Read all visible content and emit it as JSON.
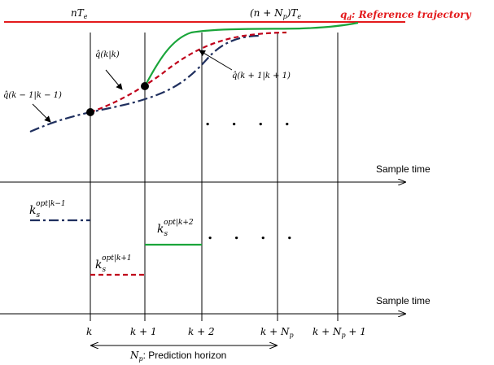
{
  "colors": {
    "reference": "#e31a1c",
    "past_prediction": "#1f2f5e",
    "current_prediction": "#c0001a",
    "next_prediction": "#1aa53a",
    "axis": "#000000"
  },
  "top_labels": {
    "n_te": "nT",
    "n_te_sub": "e",
    "n_np_te": "(n + N",
    "n_np_te_sub_p": "p",
    "n_np_te_tail": ")T",
    "n_np_te_sub_e": "e"
  },
  "reference": {
    "symbol": "q",
    "symbol_sub": "d",
    "label": ": Reference trajectory"
  },
  "annotations": {
    "q_k_k": "q̂(k|k)",
    "q_k1_k1": "q̂(k − 1|k − 1)",
    "q_k1p_k1p": "q̂(k + 1|k + 1)",
    "dots_top": ". . . .",
    "dots_bottom": ". . . ."
  },
  "axes": {
    "upper_label": "Sample time",
    "lower_label": "Sample time"
  },
  "gains": {
    "k_km1": {
      "base": "k",
      "sub": "s",
      "sup": "opt|k−1"
    },
    "k_k1": {
      "base": "k",
      "sub": "s",
      "sup": "opt|k+1"
    },
    "k_k2": {
      "base": "k",
      "sub": "s",
      "sup": "opt|k+2"
    }
  },
  "ticks": [
    {
      "text": "k"
    },
    {
      "text": "k + 1"
    },
    {
      "text": "k + 2"
    },
    {
      "text": "k + N",
      "sub": "p"
    },
    {
      "text": "k + N",
      "sub": "p",
      "tail": " + 1"
    }
  ],
  "horizon": {
    "symbol": "N",
    "symbol_sub": "p",
    "label": ": Prediction horizon"
  }
}
